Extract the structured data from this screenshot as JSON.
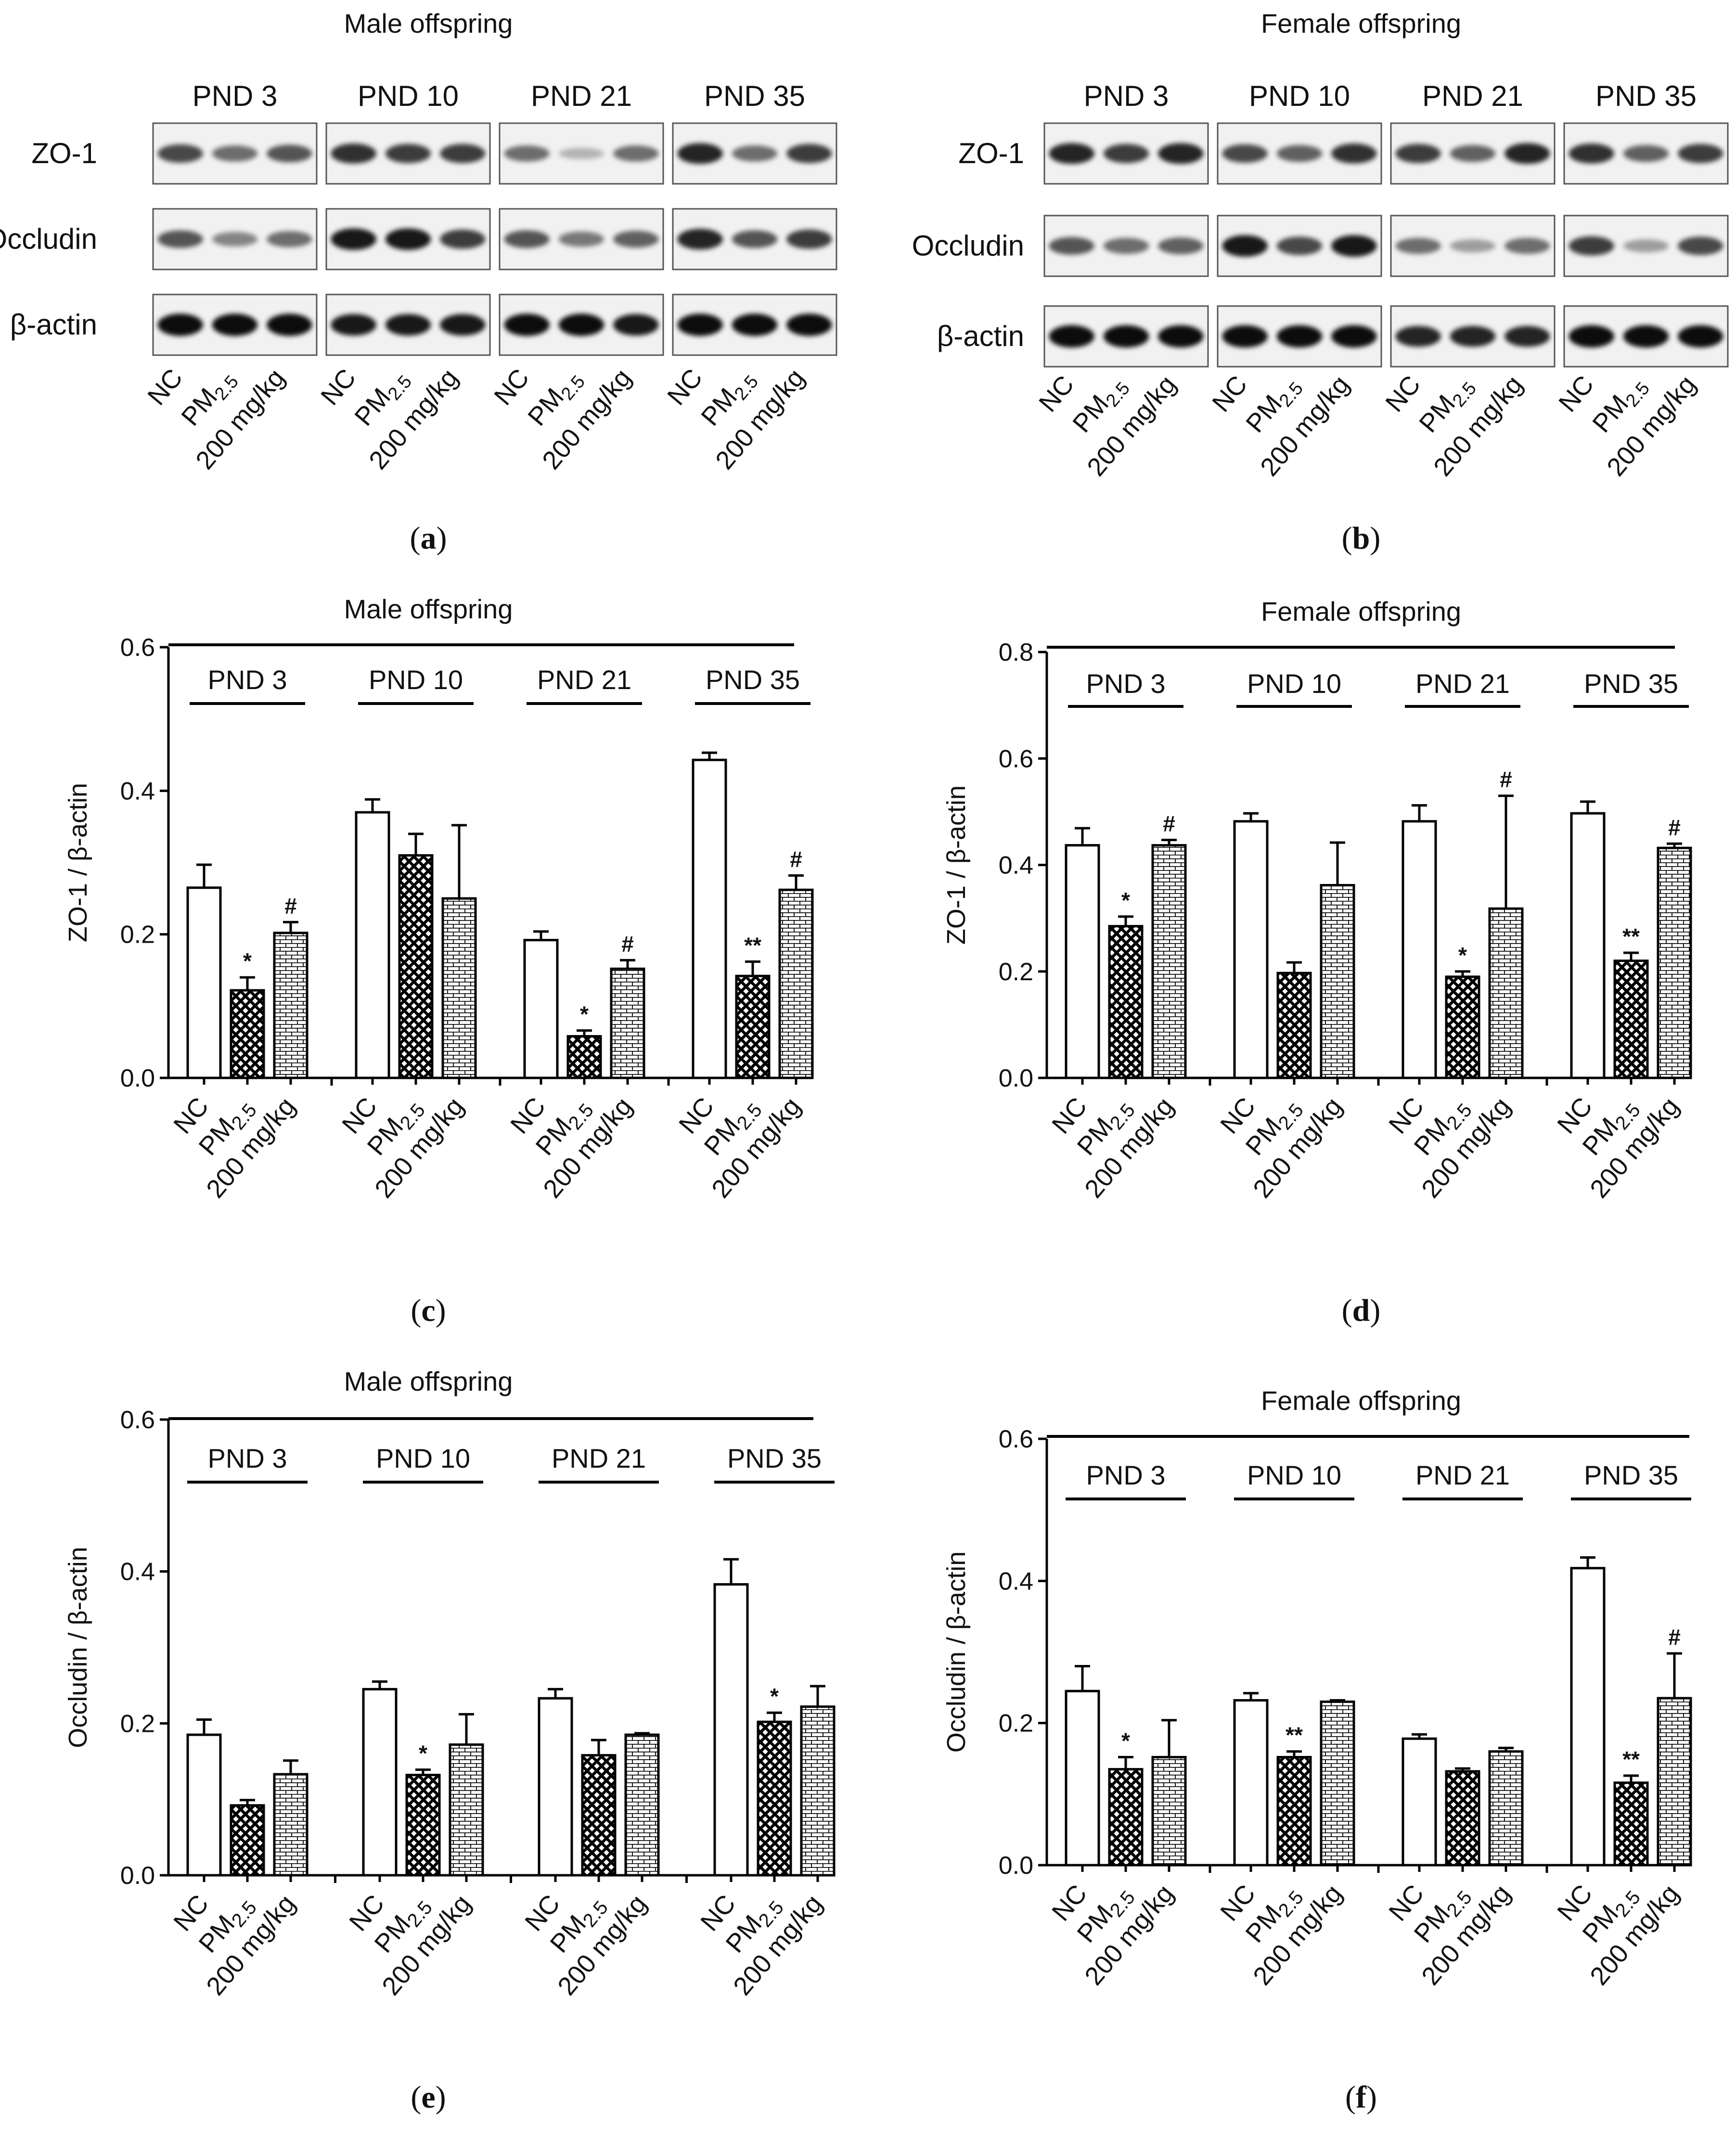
{
  "blots": [
    {
      "title": "Male offspring",
      "panel": "a",
      "groups": [
        "PND 3",
        "PND 10",
        "PND 21",
        "PND 35"
      ],
      "rows": [
        "ZO-1",
        "Occludin",
        "β-actin"
      ],
      "lanes": [
        "NC",
        "PM",
        "2.5",
        "200 mg/kg"
      ],
      "intensities": [
        [
          [
            0.7,
            0.55,
            0.65
          ],
          [
            0.8,
            0.75,
            0.75
          ],
          [
            0.55,
            0.25,
            0.55
          ],
          [
            0.85,
            0.55,
            0.75
          ]
        ],
        [
          [
            0.65,
            0.45,
            0.55
          ],
          [
            0.9,
            0.9,
            0.75
          ],
          [
            0.65,
            0.5,
            0.6
          ],
          [
            0.85,
            0.65,
            0.75
          ]
        ],
        [
          [
            0.95,
            0.95,
            0.95
          ],
          [
            0.9,
            0.9,
            0.9
          ],
          [
            0.95,
            0.95,
            0.9
          ],
          [
            0.95,
            0.95,
            0.95
          ]
        ]
      ]
    },
    {
      "title": "Female offspring",
      "panel": "b",
      "groups": [
        "PND 3",
        "PND 10",
        "PND 21",
        "PND 35"
      ],
      "rows": [
        "ZO-1",
        "Occludin",
        "β-actin"
      ],
      "lanes": [
        "NC",
        "PM",
        "2.5",
        "200 mg/kg"
      ],
      "intensities": [
        [
          [
            0.85,
            0.75,
            0.85
          ],
          [
            0.7,
            0.6,
            0.8
          ],
          [
            0.75,
            0.6,
            0.85
          ],
          [
            0.8,
            0.6,
            0.75
          ]
        ],
        [
          [
            0.65,
            0.55,
            0.6
          ],
          [
            0.9,
            0.7,
            0.9
          ],
          [
            0.55,
            0.35,
            0.55
          ],
          [
            0.75,
            0.35,
            0.7
          ]
        ],
        [
          [
            0.95,
            0.95,
            0.95
          ],
          [
            0.95,
            0.95,
            0.95
          ],
          [
            0.85,
            0.85,
            0.85
          ],
          [
            0.95,
            0.95,
            0.95
          ]
        ]
      ]
    }
  ],
  "chart_data": [
    {
      "type": "bar",
      "panel": "c",
      "title": "Male offspring",
      "ylabel": "ZO-1 / β-actin",
      "ylim": [
        0,
        0.6
      ],
      "yticks": [
        "0.0",
        "0.2",
        "0.4",
        "0.6"
      ],
      "groups": [
        "PND 3",
        "PND 10",
        "PND 21",
        "PND 35"
      ],
      "categories": [
        "NC",
        "PM",
        "2.5",
        "200 mg/kg"
      ],
      "series": [
        {
          "name": "NC",
          "values": [
            0.265,
            0.37,
            0.192,
            0.443
          ],
          "errors": [
            0.032,
            0.018,
            0.012,
            0.01
          ]
        },
        {
          "name": "PM2.5",
          "values": [
            0.122,
            0.31,
            0.058,
            0.142
          ],
          "errors": [
            0.018,
            0.03,
            0.008,
            0.02
          ]
        },
        {
          "name": "200 mg/kg",
          "values": [
            0.202,
            0.25,
            0.152,
            0.262
          ],
          "errors": [
            0.015,
            0.102,
            0.012,
            0.02
          ]
        }
      ],
      "annotations": [
        {
          "group": 0,
          "bar": 1,
          "text": "*"
        },
        {
          "group": 0,
          "bar": 2,
          "text": "#"
        },
        {
          "group": 2,
          "bar": 1,
          "text": "*"
        },
        {
          "group": 2,
          "bar": 2,
          "text": "#"
        },
        {
          "group": 3,
          "bar": 1,
          "text": "**"
        },
        {
          "group": 3,
          "bar": 2,
          "text": "#"
        }
      ]
    },
    {
      "type": "bar",
      "panel": "d",
      "title": "Female offspring",
      "ylabel": "ZO-1 / β-actin",
      "ylim": [
        0,
        0.8
      ],
      "yticks": [
        "0.0",
        "0.2",
        "0.4",
        "0.6",
        "0.8"
      ],
      "groups": [
        "PND 3",
        "PND 10",
        "PND 21",
        "PND 35"
      ],
      "categories": [
        "NC",
        "PM",
        "2.5",
        "200 mg/kg"
      ],
      "series": [
        {
          "name": "NC",
          "values": [
            0.437,
            0.482,
            0.482,
            0.497
          ],
          "errors": [
            0.032,
            0.015,
            0.03,
            0.022
          ]
        },
        {
          "name": "PM2.5",
          "values": [
            0.285,
            0.197,
            0.19,
            0.22
          ],
          "errors": [
            0.018,
            0.02,
            0.01,
            0.015
          ]
        },
        {
          "name": "200 mg/kg",
          "values": [
            0.437,
            0.362,
            0.318,
            0.432
          ],
          "errors": [
            0.01,
            0.08,
            0.212,
            0.008
          ]
        }
      ],
      "annotations": [
        {
          "group": 0,
          "bar": 1,
          "text": "*"
        },
        {
          "group": 0,
          "bar": 2,
          "text": "#"
        },
        {
          "group": 2,
          "bar": 1,
          "text": "*"
        },
        {
          "group": 2,
          "bar": 2,
          "text": "#"
        },
        {
          "group": 3,
          "bar": 1,
          "text": "**"
        },
        {
          "group": 3,
          "bar": 2,
          "text": "#"
        }
      ]
    },
    {
      "type": "bar",
      "panel": "e",
      "title": "Male offspring",
      "ylabel": "Occludin / β-actin",
      "ylim": [
        0,
        0.6
      ],
      "yticks": [
        "0.0",
        "0.2",
        "0.4",
        "0.6"
      ],
      "groups": [
        "PND 3",
        "PND 10",
        "PND 21",
        "PND 35"
      ],
      "categories": [
        "NC",
        "PM",
        "2.5",
        "200 mg/kg"
      ],
      "series": [
        {
          "name": "NC",
          "values": [
            0.185,
            0.245,
            0.233,
            0.383
          ],
          "errors": [
            0.02,
            0.01,
            0.012,
            0.033
          ]
        },
        {
          "name": "PM2.5",
          "values": [
            0.092,
            0.132,
            0.158,
            0.202
          ],
          "errors": [
            0.007,
            0.007,
            0.02,
            0.012
          ]
        },
        {
          "name": "200 mg/kg",
          "values": [
            0.133,
            0.172,
            0.185,
            0.222
          ],
          "errors": [
            0.018,
            0.04,
            0.002,
            0.027
          ]
        }
      ],
      "annotations": [
        {
          "group": 1,
          "bar": 1,
          "text": "*"
        },
        {
          "group": 3,
          "bar": 1,
          "text": "*"
        }
      ]
    },
    {
      "type": "bar",
      "panel": "f",
      "title": "Female offspring",
      "ylabel": "Occludin / β-actin",
      "ylim": [
        0,
        0.6
      ],
      "yticks": [
        "0.0",
        "0.2",
        "0.4",
        "0.6"
      ],
      "groups": [
        "PND 3",
        "PND 10",
        "PND 21",
        "PND 35"
      ],
      "categories": [
        "NC",
        "PM",
        "2.5",
        "200 mg/kg"
      ],
      "series": [
        {
          "name": "NC",
          "values": [
            0.245,
            0.232,
            0.178,
            0.418
          ],
          "errors": [
            0.035,
            0.01,
            0.006,
            0.015
          ]
        },
        {
          "name": "PM2.5",
          "values": [
            0.135,
            0.152,
            0.132,
            0.116
          ],
          "errors": [
            0.017,
            0.008,
            0.004,
            0.01
          ]
        },
        {
          "name": "200 mg/kg",
          "values": [
            0.152,
            0.23,
            0.16,
            0.235
          ],
          "errors": [
            0.052,
            0.002,
            0.005,
            0.063
          ]
        }
      ],
      "annotations": [
        {
          "group": 0,
          "bar": 1,
          "text": "*"
        },
        {
          "group": 1,
          "bar": 1,
          "text": "**"
        },
        {
          "group": 3,
          "bar": 1,
          "text": "**"
        },
        {
          "group": 3,
          "bar": 2,
          "text": "#"
        }
      ]
    }
  ],
  "captions": {
    "open": "(",
    "close": ")",
    "labels": [
      "a",
      "b",
      "c",
      "d",
      "e",
      "f"
    ]
  }
}
